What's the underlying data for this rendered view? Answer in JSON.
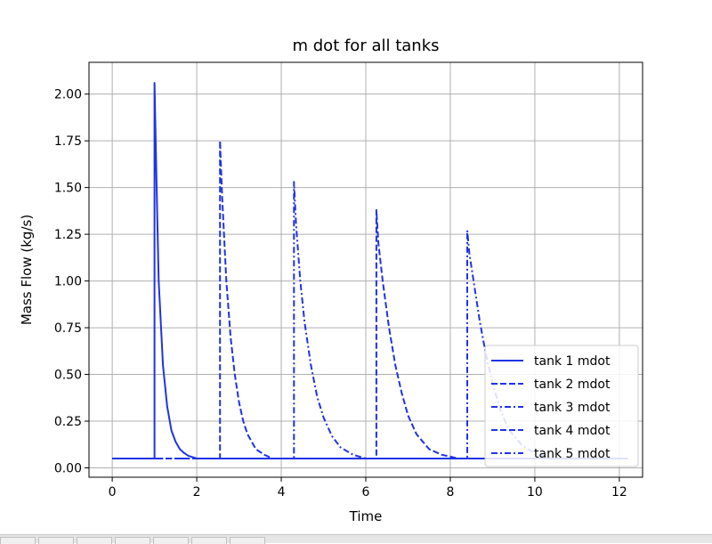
{
  "chart_data": {
    "type": "line",
    "title": "m dot for all tanks",
    "xlabel": "Time",
    "ylabel": "Mass Flow (kg/s)",
    "xlim": [
      -0.55,
      12.55
    ],
    "ylim": [
      -0.05,
      2.17
    ],
    "xticks": [
      0,
      2,
      4,
      6,
      8,
      10,
      12
    ],
    "yticks": [
      0.0,
      0.25,
      0.5,
      0.75,
      1.0,
      1.25,
      1.5,
      1.75,
      2.0
    ],
    "xtick_labels": [
      "0",
      "2",
      "4",
      "6",
      "8",
      "10",
      "12"
    ],
    "ytick_labels": [
      "0.00",
      "0.25",
      "0.50",
      "0.75",
      "1.00",
      "1.25",
      "1.50",
      "1.75",
      "2.00"
    ],
    "grid": true,
    "legend_position": "lower-right",
    "line_color": "#1f33e6",
    "series": [
      {
        "name": "tank 1 mdot",
        "style": "solid",
        "x": [
          0,
          1.0,
          1.0,
          1.05,
          1.1,
          1.2,
          1.3,
          1.4,
          1.5,
          1.6,
          1.7,
          1.8,
          2.0,
          12.2
        ],
        "y": [
          0.05,
          0.05,
          2.06,
          1.5,
          1.0,
          0.55,
          0.33,
          0.2,
          0.14,
          0.1,
          0.08,
          0.065,
          0.05,
          0.05
        ]
      },
      {
        "name": "tank 2 mdot",
        "style": "dashed",
        "x": [
          0,
          2.55,
          2.55,
          2.6,
          2.7,
          2.8,
          2.9,
          3.0,
          3.1,
          3.2,
          3.4,
          3.6,
          3.8,
          12.2
        ],
        "y": [
          0.05,
          0.05,
          1.75,
          1.45,
          1.0,
          0.7,
          0.5,
          0.35,
          0.25,
          0.18,
          0.1,
          0.07,
          0.05,
          0.05
        ]
      },
      {
        "name": "tank 3 mdot",
        "style": "dashdot",
        "x": [
          0,
          4.3,
          4.3,
          4.35,
          4.45,
          4.55,
          4.7,
          4.85,
          5.0,
          5.2,
          5.4,
          5.7,
          6.0,
          12.2
        ],
        "y": [
          0.05,
          0.05,
          1.53,
          1.3,
          1.0,
          0.78,
          0.55,
          0.38,
          0.27,
          0.17,
          0.11,
          0.07,
          0.05,
          0.05
        ]
      },
      {
        "name": "tank 4 mdot",
        "style": "dashed",
        "x": [
          0,
          6.25,
          6.25,
          6.3,
          6.4,
          6.55,
          6.7,
          6.85,
          7.0,
          7.2,
          7.5,
          7.8,
          8.2,
          12.2
        ],
        "y": [
          0.05,
          0.05,
          1.38,
          1.2,
          1.0,
          0.75,
          0.55,
          0.4,
          0.28,
          0.18,
          0.1,
          0.07,
          0.05,
          0.05
        ]
      },
      {
        "name": "tank 5 mdot",
        "style": "dashdot",
        "x": [
          0,
          8.4,
          8.4,
          8.45,
          8.55,
          8.7,
          8.85,
          9.0,
          9.2,
          9.4,
          9.7,
          10.0,
          10.4,
          12.2
        ],
        "y": [
          0.05,
          0.05,
          1.27,
          1.15,
          1.0,
          0.78,
          0.6,
          0.45,
          0.3,
          0.2,
          0.12,
          0.08,
          0.05,
          0.05
        ]
      }
    ]
  }
}
